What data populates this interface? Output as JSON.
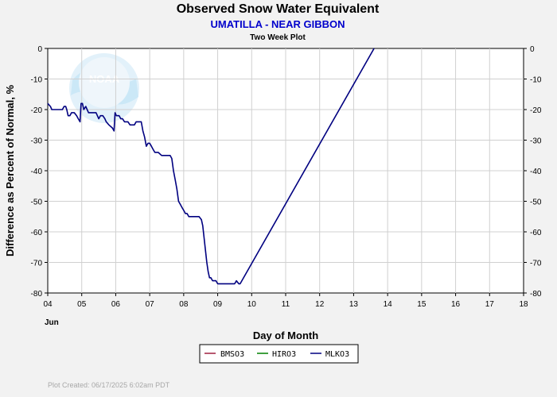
{
  "chart_data": {
    "type": "line",
    "title": "Observed Snow Water Equivalent",
    "subtitle": "UMATILLA - NEAR GIBBON",
    "subtitle2": "Two Week Plot",
    "xlabel": "Day of Month",
    "ylabel": "Difference as Percent of Normal, %",
    "x_month_label": "Jun",
    "xlim": [
      4,
      18
    ],
    "ylim": [
      -80,
      0
    ],
    "x_ticks": [
      "04",
      "05",
      "06",
      "07",
      "08",
      "09",
      "10",
      "11",
      "12",
      "13",
      "14",
      "15",
      "16",
      "17",
      "18"
    ],
    "y_ticks": [
      "0",
      "-10",
      "-20",
      "-30",
      "-40",
      "-50",
      "-60",
      "-70",
      "-80"
    ],
    "grid": true,
    "legend_position": "bottom-center",
    "legend": [
      "BMSO3",
      "HIRO3",
      "MLKO3"
    ],
    "series": [
      {
        "name": "MLKO3",
        "color": "#000080",
        "points": [
          [
            4.0,
            -18
          ],
          [
            4.08,
            -19
          ],
          [
            4.12,
            -20
          ],
          [
            4.2,
            -20
          ],
          [
            4.3,
            -20
          ],
          [
            4.43,
            -20
          ],
          [
            4.48,
            -19
          ],
          [
            4.53,
            -19
          ],
          [
            4.56,
            -20
          ],
          [
            4.6,
            -22
          ],
          [
            4.65,
            -22
          ],
          [
            4.7,
            -21
          ],
          [
            4.78,
            -21
          ],
          [
            4.85,
            -22
          ],
          [
            4.9,
            -23
          ],
          [
            4.95,
            -24
          ],
          [
            4.98,
            -18
          ],
          [
            5.02,
            -18
          ],
          [
            5.06,
            -20
          ],
          [
            5.12,
            -19
          ],
          [
            5.16,
            -20
          ],
          [
            5.2,
            -21
          ],
          [
            5.3,
            -21
          ],
          [
            5.42,
            -21
          ],
          [
            5.46,
            -22
          ],
          [
            5.5,
            -23
          ],
          [
            5.55,
            -22
          ],
          [
            5.62,
            -22
          ],
          [
            5.68,
            -23
          ],
          [
            5.72,
            -24
          ],
          [
            5.8,
            -25
          ],
          [
            5.9,
            -26
          ],
          [
            5.95,
            -27
          ],
          [
            5.98,
            -21
          ],
          [
            6.02,
            -22
          ],
          [
            6.1,
            -22
          ],
          [
            6.15,
            -23
          ],
          [
            6.2,
            -23
          ],
          [
            6.26,
            -24
          ],
          [
            6.36,
            -24
          ],
          [
            6.42,
            -25
          ],
          [
            6.55,
            -25
          ],
          [
            6.6,
            -24
          ],
          [
            6.75,
            -24
          ],
          [
            6.8,
            -27
          ],
          [
            6.85,
            -29
          ],
          [
            6.9,
            -32
          ],
          [
            6.95,
            -31
          ],
          [
            7.0,
            -31
          ],
          [
            7.05,
            -32
          ],
          [
            7.1,
            -33
          ],
          [
            7.15,
            -34
          ],
          [
            7.25,
            -34
          ],
          [
            7.35,
            -35
          ],
          [
            7.6,
            -35
          ],
          [
            7.65,
            -36
          ],
          [
            7.7,
            -40
          ],
          [
            7.75,
            -43
          ],
          [
            7.8,
            -46
          ],
          [
            7.85,
            -50
          ],
          [
            7.9,
            -51
          ],
          [
            7.95,
            -52
          ],
          [
            8.0,
            -53
          ],
          [
            8.05,
            -54
          ],
          [
            8.1,
            -54
          ],
          [
            8.15,
            -55
          ],
          [
            8.2,
            -55
          ],
          [
            8.3,
            -55
          ],
          [
            8.45,
            -55
          ],
          [
            8.52,
            -56
          ],
          [
            8.56,
            -58
          ],
          [
            8.6,
            -62
          ],
          [
            8.64,
            -66
          ],
          [
            8.68,
            -70
          ],
          [
            8.72,
            -73
          ],
          [
            8.76,
            -75
          ],
          [
            8.8,
            -75
          ],
          [
            8.85,
            -76
          ],
          [
            8.9,
            -76
          ],
          [
            8.95,
            -76
          ],
          [
            9.0,
            -77
          ],
          [
            9.05,
            -77
          ],
          [
            9.25,
            -77
          ],
          [
            9.35,
            -77
          ],
          [
            9.5,
            -77
          ],
          [
            9.55,
            -76
          ],
          [
            9.62,
            -77
          ],
          [
            9.66,
            -77
          ],
          [
            13.6,
            0
          ]
        ]
      }
    ]
  },
  "colors": {
    "legend_marks": [
      "#a02040",
      "#008000",
      "#000080"
    ],
    "plot_bg": "#ffffff",
    "grid": "#d0d0d0",
    "subtitle": "#0000cc"
  },
  "logo": {
    "icon": "noaa-logo-watermark",
    "text": "NOAA"
  },
  "footer": {
    "plot_created": "Plot Created: 06/17/2025 6:02am PDT"
  }
}
